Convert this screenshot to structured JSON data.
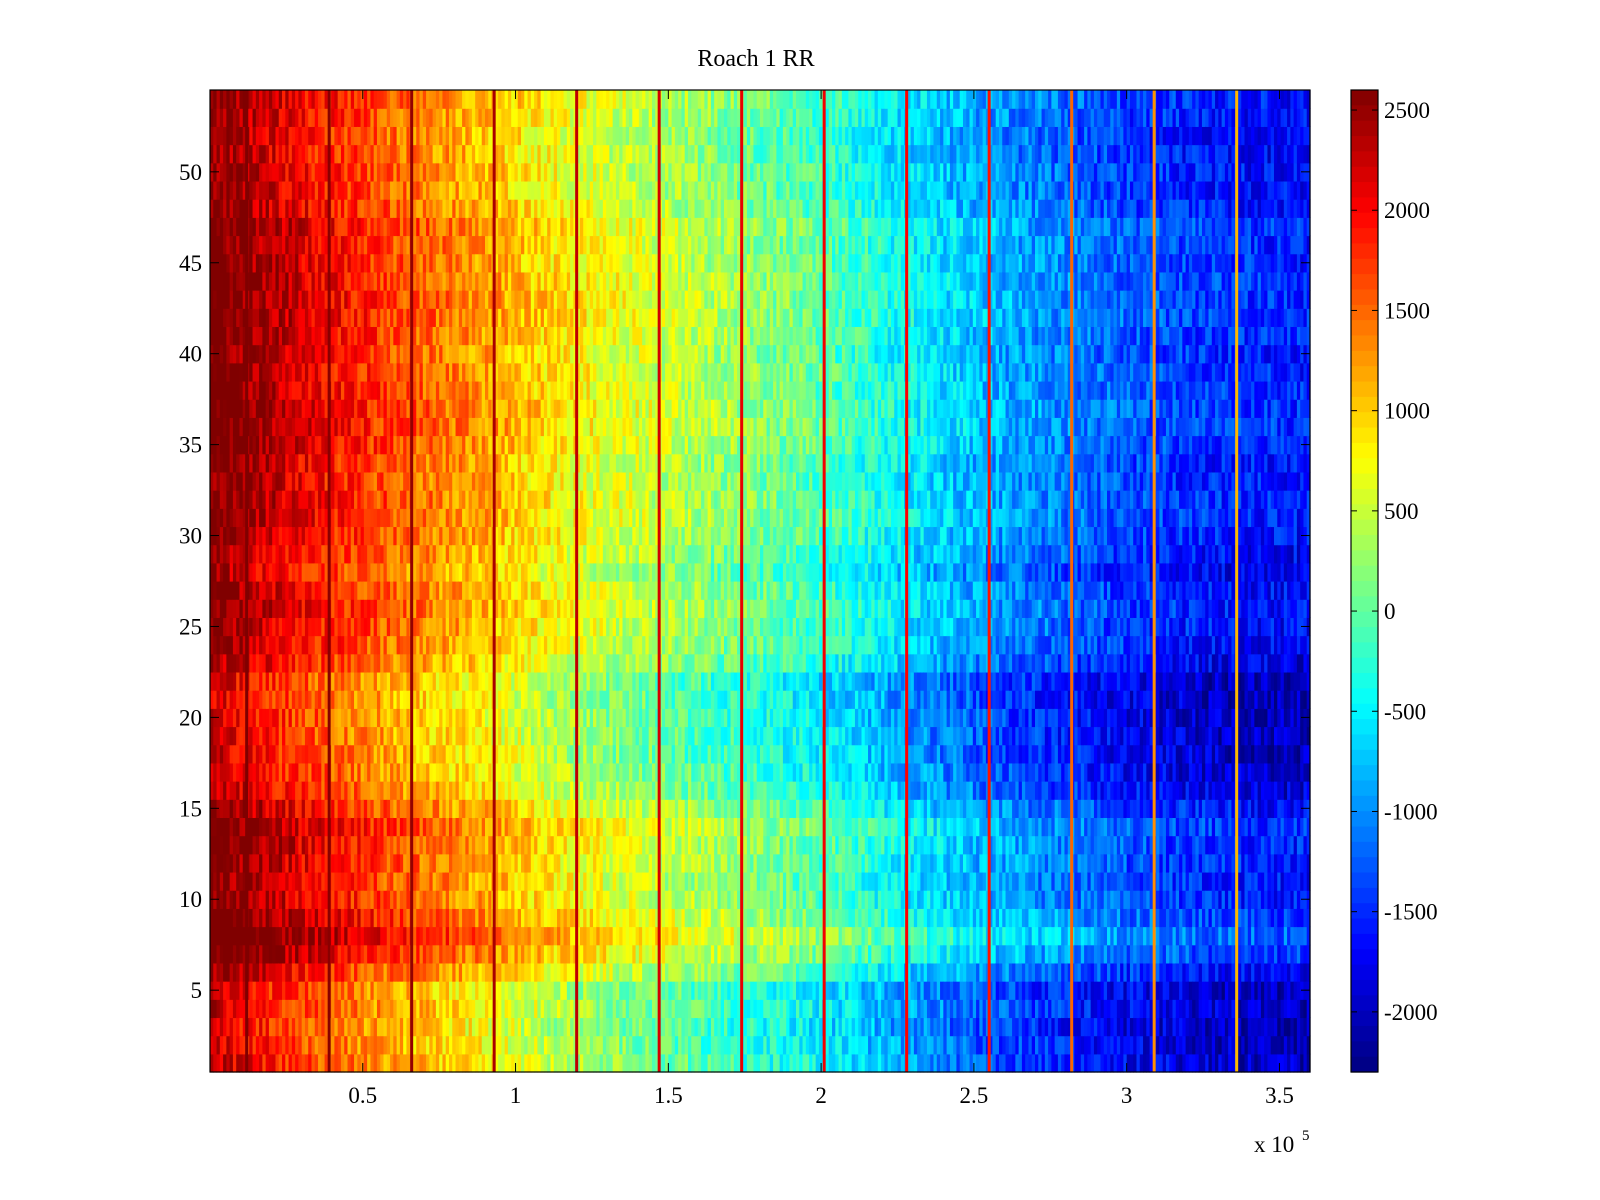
{
  "chart_data": {
    "type": "heatmap",
    "title": "Roach 1 RR",
    "xlabel": "",
    "ylabel": "",
    "x_exponent_label": "x 10",
    "x_exponent_power": "5",
    "xlim": [
      0,
      360000
    ],
    "ylim": [
      0.5,
      54.5
    ],
    "x_ticks": [
      {
        "value": 50000,
        "label": "0.5"
      },
      {
        "value": 100000,
        "label": "1"
      },
      {
        "value": 150000,
        "label": "1.5"
      },
      {
        "value": 200000,
        "label": "2"
      },
      {
        "value": 250000,
        "label": "2.5"
      },
      {
        "value": 300000,
        "label": "3"
      },
      {
        "value": 350000,
        "label": "3.5"
      }
    ],
    "y_ticks": [
      {
        "value": 5,
        "label": "5"
      },
      {
        "value": 10,
        "label": "10"
      },
      {
        "value": 15,
        "label": "15"
      },
      {
        "value": 20,
        "label": "20"
      },
      {
        "value": 25,
        "label": "25"
      },
      {
        "value": 30,
        "label": "30"
      },
      {
        "value": 35,
        "label": "35"
      },
      {
        "value": 40,
        "label": "40"
      },
      {
        "value": 45,
        "label": "45"
      },
      {
        "value": 50,
        "label": "50"
      }
    ],
    "colorbar": {
      "colormap": "jet",
      "range": [
        -2300,
        2600
      ],
      "ticks": [
        {
          "value": 2500,
          "label": "2500"
        },
        {
          "value": 2000,
          "label": "2000"
        },
        {
          "value": 1500,
          "label": "1500"
        },
        {
          "value": 1000,
          "label": "1000"
        },
        {
          "value": 500,
          "label": "500"
        },
        {
          "value": 0,
          "label": "0"
        },
        {
          "value": -500,
          "label": "-500"
        },
        {
          "value": -1000,
          "label": "-1000"
        },
        {
          "value": -1500,
          "label": "-1500"
        },
        {
          "value": -2000,
          "label": "-2000"
        }
      ]
    },
    "rows": 54,
    "x_bins": [
      0,
      15000,
      30000,
      45000,
      60000,
      75000,
      90000,
      105000,
      120000,
      135000,
      150000,
      165000,
      180000,
      195000,
      210000,
      225000,
      240000,
      255000,
      270000,
      285000,
      300000,
      315000,
      330000,
      345000,
      360000
    ],
    "column_profile": [
      2450,
      2150,
      1850,
      1600,
      1350,
      1150,
      950,
      700,
      500,
      350,
      200,
      50,
      -100,
      -250,
      -450,
      -700,
      -900,
      -1100,
      -1250,
      -1400,
      -1550,
      -1650,
      -1750,
      -1800,
      -1850
    ],
    "row_offset": [
      150,
      100,
      50,
      150,
      100,
      400,
      700,
      900,
      700,
      550,
      500,
      550,
      600,
      650,
      450,
      250,
      150,
      100,
      100,
      100,
      50,
      50,
      300,
      400,
      450,
      500,
      450,
      300,
      400,
      500,
      550,
      550,
      500,
      500,
      600,
      650,
      650,
      600,
      600,
      550,
      600,
      650,
      650,
      650,
      600,
      600,
      650,
      500,
      450,
      450,
      400,
      400,
      450,
      500
    ],
    "vertical_stripes": [
      {
        "x": 12000,
        "value": 2600
      },
      {
        "x": 39000,
        "value": 2550
      },
      {
        "x": 66000,
        "value": 2500
      },
      {
        "x": 93000,
        "value": 2400
      },
      {
        "x": 120000,
        "value": 2300
      },
      {
        "x": 147000,
        "value": 2200
      },
      {
        "x": 174000,
        "value": 2100
      },
      {
        "x": 201000,
        "value": 2050
      },
      {
        "x": 228000,
        "value": 2000
      },
      {
        "x": 255000,
        "value": 1900
      },
      {
        "x": 282000,
        "value": 1500
      },
      {
        "x": 309000,
        "value": 1300
      },
      {
        "x": 336000,
        "value": 1100
      }
    ]
  }
}
